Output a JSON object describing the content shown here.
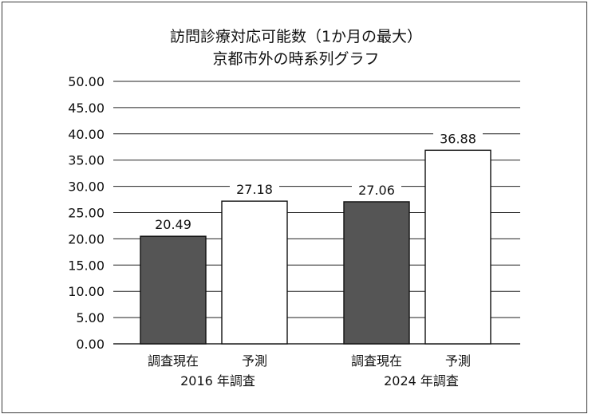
{
  "chart_data": {
    "type": "bar",
    "title_lines": [
      "訪問診療対応可能数（1か月の最大）",
      "京都市外の時系列グラフ"
    ],
    "groups": [
      {
        "label": "2016 年調査",
        "bars": [
          {
            "label": "調査現在",
            "value": 20.49,
            "value_label": "20.49",
            "color": "#555555"
          },
          {
            "label": "予測",
            "value": 27.18,
            "value_label": "27.18",
            "color": "#ffffff"
          }
        ]
      },
      {
        "label": "2024 年調査",
        "bars": [
          {
            "label": "調査現在",
            "value": 27.06,
            "value_label": "27.06",
            "color": "#555555"
          },
          {
            "label": "予測",
            "value": 36.88,
            "value_label": "36.88",
            "color": "#ffffff"
          }
        ]
      }
    ],
    "yticks": [
      "0.00",
      "5.00",
      "10.00",
      "15.00",
      "20.00",
      "25.00",
      "30.00",
      "35.00",
      "40.00",
      "45.00",
      "50.00"
    ],
    "ylim": [
      0,
      50
    ],
    "ystep": 5,
    "grid": true
  }
}
